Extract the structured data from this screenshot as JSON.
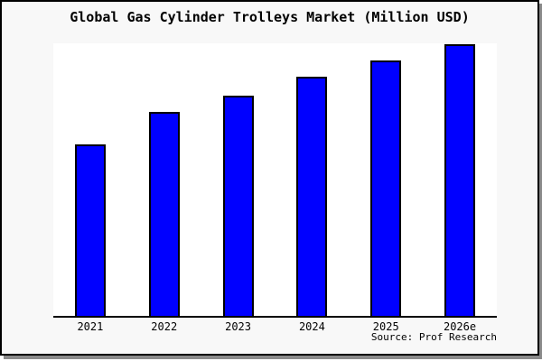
{
  "window": {
    "background": "#ffffff",
    "frame_border_color": "#000000",
    "frame_shadow_color": "#8a8a8a",
    "canvas_background": "#f8f8f8"
  },
  "chart_data": {
    "type": "bar",
    "title": "Global Gas Cylinder Trolleys Market (Million USD)",
    "source": "Source: Prof Research",
    "categories": [
      "2021",
      "2022",
      "2023",
      "2024",
      "2025",
      "2026e"
    ],
    "values": [
      63,
      75,
      81,
      88,
      94,
      100
    ],
    "xlabel": "",
    "ylabel": "",
    "ylim": [
      0,
      100
    ],
    "grid": false,
    "legend": false,
    "y_axis_shown": false,
    "bar_color": "#0000ff",
    "bar_border_color": "#000000",
    "plot_background": "#ffffff",
    "axis_color": "#000000"
  }
}
